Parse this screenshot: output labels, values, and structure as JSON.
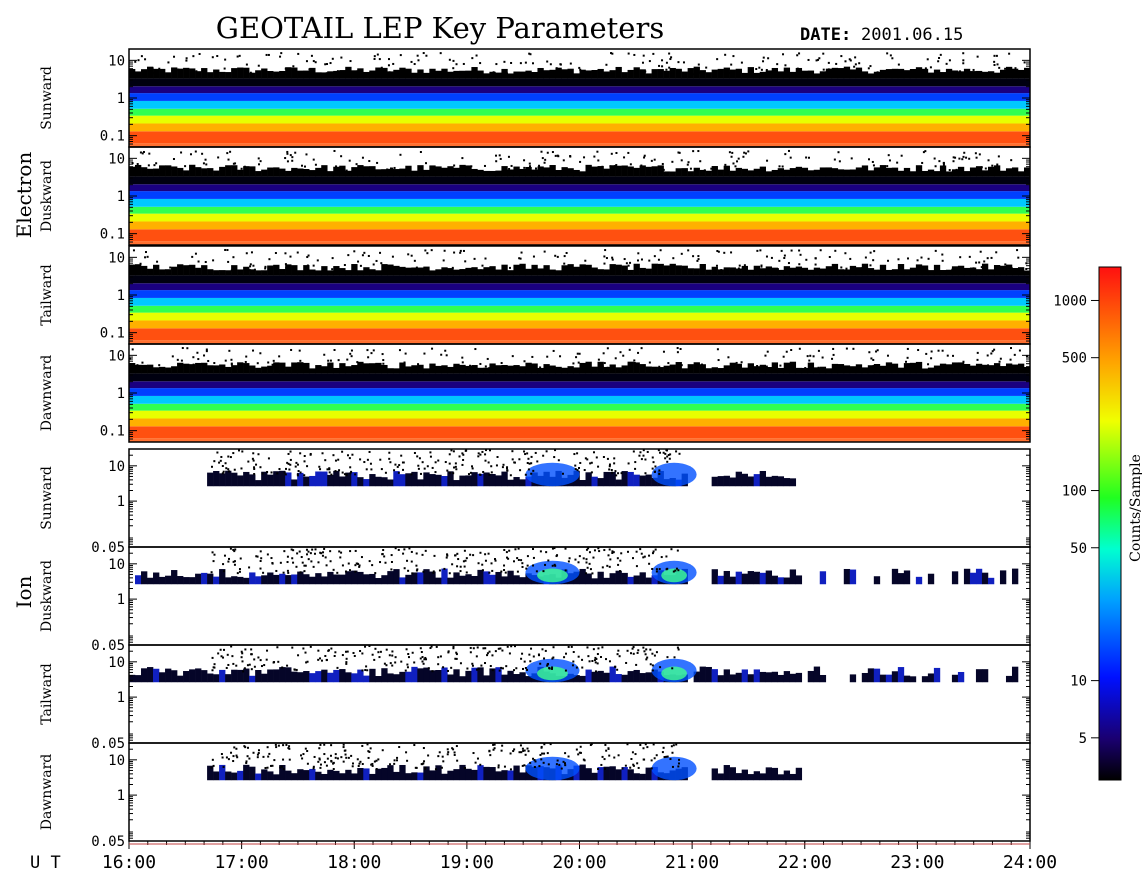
{
  "title": "GEOTAIL LEP Key Parameters",
  "date_label": "DATE:",
  "date_value": "2001.06.15",
  "ut_label": "U T",
  "x_ticks": [
    "16:00",
    "17:00",
    "18:00",
    "19:00",
    "20:00",
    "21:00",
    "22:00",
    "23:00",
    "24:00"
  ],
  "colorbar": {
    "label": "Counts/Sample",
    "scale": "log",
    "range": [
      3,
      1500
    ],
    "ticks": [
      {
        "label": "1000",
        "value": 1000
      },
      {
        "label": "500",
        "value": 500
      },
      {
        "label": "100",
        "value": 100
      },
      {
        "label": "50",
        "value": 50
      },
      {
        "label": "10",
        "value": 10
      },
      {
        "label": "5",
        "value": 5
      }
    ]
  },
  "groups": [
    {
      "name": "Electron"
    },
    {
      "name": "Ion"
    }
  ],
  "chart_data": {
    "type": "heatmap",
    "x_range": [
      "16:00",
      "24:00"
    ],
    "x_unit": "UT",
    "panels": [
      {
        "group": "Electron",
        "direction": "Sunward",
        "y_scale": "log",
        "y_ticks": [
          "10",
          "1",
          "0.1"
        ],
        "y_range": [
          0.05,
          20
        ]
      },
      {
        "group": "Electron",
        "direction": "Duskward",
        "y_scale": "log",
        "y_ticks": [
          "10",
          "1",
          "0.1"
        ],
        "y_range": [
          0.05,
          20
        ]
      },
      {
        "group": "Electron",
        "direction": "Tailward",
        "y_scale": "log",
        "y_ticks": [
          "10",
          "1",
          "0.1"
        ],
        "y_range": [
          0.05,
          20
        ]
      },
      {
        "group": "Electron",
        "direction": "Dawnward",
        "y_scale": "log",
        "y_ticks": [
          "10",
          "1",
          "0.1"
        ],
        "y_range": [
          0.05,
          20
        ]
      },
      {
        "group": "Ion",
        "direction": "Sunward",
        "y_scale": "log",
        "y_ticks": [
          "10",
          "1",
          "0.05"
        ],
        "y_range": [
          0.05,
          30
        ]
      },
      {
        "group": "Ion",
        "direction": "Duskward",
        "y_scale": "log",
        "y_ticks": [
          "10",
          "1",
          "0.05"
        ],
        "y_range": [
          0.05,
          30
        ]
      },
      {
        "group": "Ion",
        "direction": "Tailward",
        "y_scale": "log",
        "y_ticks": [
          "10",
          "1",
          "0.05"
        ],
        "y_range": [
          0.05,
          30
        ]
      },
      {
        "group": "Ion",
        "direction": "Dawnward",
        "y_scale": "log",
        "y_ticks": [
          "10",
          "1",
          "0.05"
        ],
        "y_range": [
          0.05,
          30
        ]
      }
    ]
  }
}
